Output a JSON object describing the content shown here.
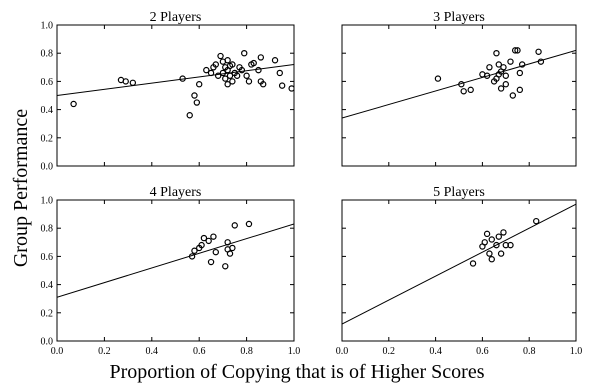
{
  "chart_data": {
    "type": "scatter",
    "xlabel": "Proportion of Copying that is of Higher Scores",
    "ylabel": "Group Performance",
    "xlim": [
      0.0,
      1.0
    ],
    "ylim": [
      0.0,
      1.0
    ],
    "x_ticks": [
      "0.0",
      "0.2",
      "0.4",
      "0.6",
      "0.8",
      "1.0"
    ],
    "y_ticks": [
      "0.0",
      "0.2",
      "0.4",
      "0.6",
      "0.8",
      "1.0"
    ],
    "grid": false,
    "panels": [
      {
        "title": "2 Players",
        "fit_line": {
          "x": [
            0.0,
            1.0
          ],
          "y": [
            0.5,
            0.72
          ]
        },
        "points": [
          [
            0.07,
            0.44
          ],
          [
            0.27,
            0.61
          ],
          [
            0.29,
            0.6
          ],
          [
            0.32,
            0.59
          ],
          [
            0.53,
            0.62
          ],
          [
            0.56,
            0.36
          ],
          [
            0.58,
            0.5
          ],
          [
            0.59,
            0.45
          ],
          [
            0.6,
            0.58
          ],
          [
            0.63,
            0.68
          ],
          [
            0.65,
            0.66
          ],
          [
            0.66,
            0.7
          ],
          [
            0.67,
            0.72
          ],
          [
            0.68,
            0.64
          ],
          [
            0.69,
            0.78
          ],
          [
            0.7,
            0.74
          ],
          [
            0.7,
            0.66
          ],
          [
            0.71,
            0.7
          ],
          [
            0.71,
            0.62
          ],
          [
            0.72,
            0.68
          ],
          [
            0.72,
            0.75
          ],
          [
            0.72,
            0.58
          ],
          [
            0.73,
            0.64
          ],
          [
            0.73,
            0.71
          ],
          [
            0.74,
            0.72
          ],
          [
            0.74,
            0.6
          ],
          [
            0.75,
            0.66
          ],
          [
            0.76,
            0.64
          ],
          [
            0.77,
            0.7
          ],
          [
            0.78,
            0.68
          ],
          [
            0.79,
            0.8
          ],
          [
            0.8,
            0.64
          ],
          [
            0.81,
            0.6
          ],
          [
            0.82,
            0.72
          ],
          [
            0.83,
            0.73
          ],
          [
            0.85,
            0.68
          ],
          [
            0.86,
            0.77
          ],
          [
            0.86,
            0.6
          ],
          [
            0.87,
            0.58
          ],
          [
            0.92,
            0.75
          ],
          [
            0.94,
            0.66
          ],
          [
            0.95,
            0.57
          ],
          [
            0.99,
            0.55
          ]
        ]
      },
      {
        "title": "3 Players",
        "fit_line": {
          "x": [
            0.0,
            1.0
          ],
          "y": [
            0.34,
            0.82
          ]
        },
        "points": [
          [
            0.41,
            0.62
          ],
          [
            0.51,
            0.58
          ],
          [
            0.52,
            0.53
          ],
          [
            0.55,
            0.54
          ],
          [
            0.6,
            0.65
          ],
          [
            0.62,
            0.64
          ],
          [
            0.63,
            0.7
          ],
          [
            0.65,
            0.6
          ],
          [
            0.66,
            0.62
          ],
          [
            0.66,
            0.8
          ],
          [
            0.67,
            0.72
          ],
          [
            0.67,
            0.65
          ],
          [
            0.68,
            0.55
          ],
          [
            0.68,
            0.67
          ],
          [
            0.69,
            0.7
          ],
          [
            0.7,
            0.64
          ],
          [
            0.7,
            0.58
          ],
          [
            0.72,
            0.74
          ],
          [
            0.73,
            0.5
          ],
          [
            0.74,
            0.82
          ],
          [
            0.75,
            0.82
          ],
          [
            0.76,
            0.66
          ],
          [
            0.76,
            0.54
          ],
          [
            0.77,
            0.72
          ],
          [
            0.84,
            0.81
          ],
          [
            0.85,
            0.74
          ]
        ]
      },
      {
        "title": "4 Players",
        "fit_line": {
          "x": [
            0.0,
            1.0
          ],
          "y": [
            0.31,
            0.83
          ]
        },
        "points": [
          [
            0.57,
            0.6
          ],
          [
            0.58,
            0.64
          ],
          [
            0.6,
            0.66
          ],
          [
            0.61,
            0.68
          ],
          [
            0.62,
            0.73
          ],
          [
            0.64,
            0.71
          ],
          [
            0.65,
            0.56
          ],
          [
            0.66,
            0.74
          ],
          [
            0.67,
            0.63
          ],
          [
            0.71,
            0.53
          ],
          [
            0.72,
            0.7
          ],
          [
            0.72,
            0.65
          ],
          [
            0.73,
            0.62
          ],
          [
            0.74,
            0.66
          ],
          [
            0.75,
            0.82
          ],
          [
            0.81,
            0.83
          ]
        ]
      },
      {
        "title": "5 Players",
        "fit_line": {
          "x": [
            0.0,
            1.0
          ],
          "y": [
            0.12,
            0.97
          ]
        },
        "points": [
          [
            0.56,
            0.55
          ],
          [
            0.6,
            0.67
          ],
          [
            0.61,
            0.7
          ],
          [
            0.62,
            0.76
          ],
          [
            0.63,
            0.62
          ],
          [
            0.64,
            0.72
          ],
          [
            0.64,
            0.58
          ],
          [
            0.66,
            0.68
          ],
          [
            0.67,
            0.74
          ],
          [
            0.68,
            0.62
          ],
          [
            0.69,
            0.77
          ],
          [
            0.7,
            0.68
          ],
          [
            0.72,
            0.68
          ],
          [
            0.83,
            0.85
          ]
        ]
      }
    ]
  }
}
